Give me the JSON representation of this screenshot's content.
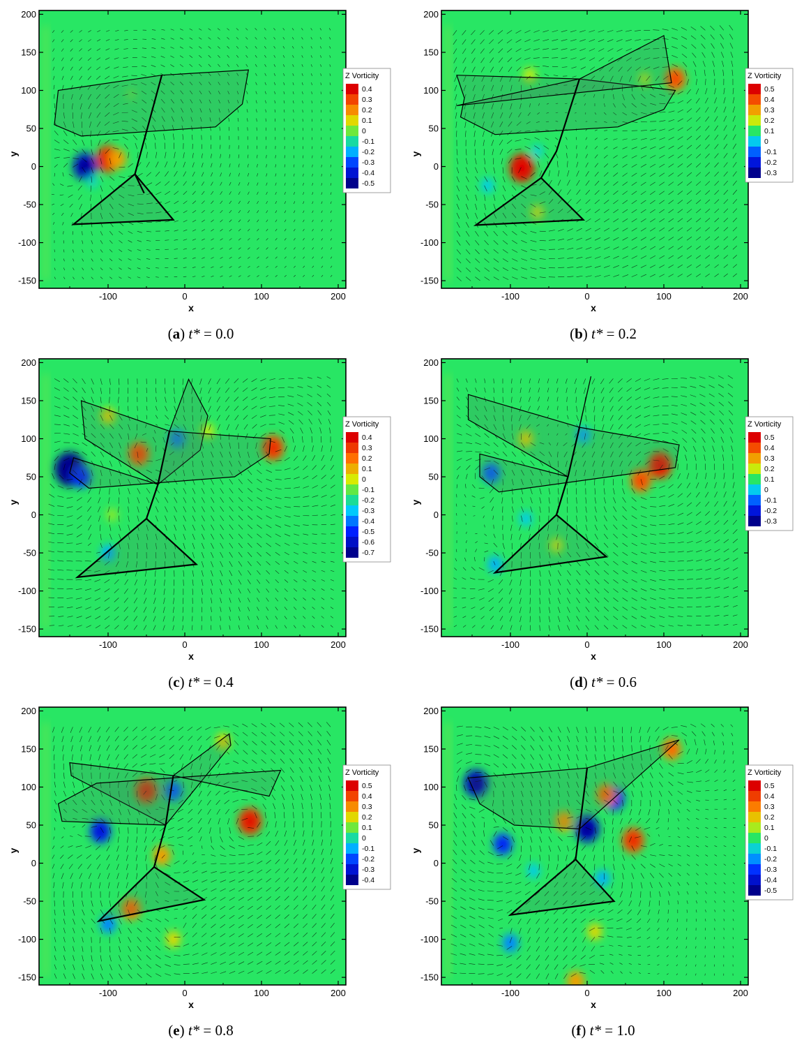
{
  "chart_data": [
    {
      "type": "heatmap",
      "caption": {
        "letter": "a",
        "var": "t*",
        "value": "0.0"
      },
      "xlabel": "x",
      "ylabel": "y",
      "xlim": [
        -190,
        210
      ],
      "ylim": [
        -160,
        205
      ],
      "xticks": [
        -100,
        0,
        100,
        200
      ],
      "yticks": [
        -150,
        -100,
        -50,
        0,
        50,
        100,
        150,
        200
      ],
      "legend": {
        "title": "Z Vorticity",
        "levels": [
          "0.4",
          "0.3",
          "0.2",
          "0.1",
          "0",
          "-0.1",
          "-0.2",
          "-0.3",
          "-0.4",
          "-0.5"
        ]
      },
      "vortices": [
        {
          "x": -100,
          "y": 10,
          "w": 0.5
        },
        {
          "x": -88,
          "y": 10,
          "w": 0.3
        },
        {
          "x": -130,
          "y": 0,
          "w": -0.5
        },
        {
          "x": -70,
          "y": 95,
          "w": 0.05
        },
        {
          "x": -120,
          "y": -20,
          "w": -0.1
        }
      ],
      "body": {
        "lines": [
          [
            [
              -30,
              120
            ],
            [
              -65,
              -10
            ],
            [
              -53,
              -35
            ]
          ]
        ],
        "polygons": [
          [
            [
              -30,
              120
            ],
            [
              -165,
              100
            ],
            [
              -170,
              55
            ],
            [
              -135,
              40
            ],
            [
              40,
              52
            ],
            [
              75,
              82
            ],
            [
              83,
              127
            ]
          ],
          [
            [
              -65,
              -10
            ],
            [
              -145,
              -76
            ],
            [
              -15,
              -70
            ]
          ]
        ]
      }
    },
    {
      "type": "heatmap",
      "caption": {
        "letter": "b",
        "var": "t*",
        "value": "0.2"
      },
      "xlabel": "x",
      "ylabel": "y",
      "xlim": [
        -190,
        210
      ],
      "ylim": [
        -160,
        205
      ],
      "xticks": [
        -100,
        0,
        100,
        200
      ],
      "yticks": [
        -150,
        -100,
        -50,
        0,
        50,
        100,
        150,
        200
      ],
      "legend": {
        "title": "Z Vorticity",
        "levels": [
          "0.5",
          "0.4",
          "0.3",
          "0.2",
          "0.1",
          "0",
          "-0.1",
          "-0.2",
          "-0.3"
        ]
      },
      "vortices": [
        {
          "x": -85,
          "y": -2,
          "w": 0.55
        },
        {
          "x": 115,
          "y": 115,
          "w": 0.4
        },
        {
          "x": -130,
          "y": -25,
          "w": -0.15
        },
        {
          "x": -65,
          "y": 20,
          "w": -0.12
        },
        {
          "x": -75,
          "y": 120,
          "w": 0.15
        },
        {
          "x": 75,
          "y": 115,
          "w": 0.12
        },
        {
          "x": -65,
          "y": -60,
          "w": 0.15
        }
      ],
      "body": {
        "lines": [
          [
            [
              -10,
              115
            ],
            [
              -40,
              20
            ],
            [
              -60,
              -15
            ]
          ]
        ],
        "polygons": [
          [
            [
              -10,
              115
            ],
            [
              -170,
              120
            ],
            [
              -160,
              90
            ],
            [
              -165,
              65
            ],
            [
              -120,
              42
            ],
            [
              40,
              52
            ],
            [
              100,
              75
            ],
            [
              115,
              100
            ]
          ],
          [
            [
              -10,
              115
            ],
            [
              -170,
              80
            ],
            [
              110,
              110
            ],
            [
              100,
              172
            ]
          ],
          [
            [
              -60,
              -15
            ],
            [
              -145,
              -77
            ],
            [
              -5,
              -70
            ]
          ]
        ]
      }
    },
    {
      "type": "heatmap",
      "caption": {
        "letter": "c",
        "var": "t*",
        "value": "0.4"
      },
      "xlabel": "x",
      "ylabel": "y",
      "xlim": [
        -190,
        210
      ],
      "ylim": [
        -160,
        205
      ],
      "xticks": [
        -100,
        0,
        100,
        200
      ],
      "yticks": [
        -150,
        -100,
        -50,
        0,
        50,
        100,
        150,
        200
      ],
      "legend": {
        "title": "Z Vorticity",
        "levels": [
          "0.4",
          "0.3",
          "0.2",
          "0.1",
          "0",
          "-0.1",
          "-0.2",
          "-0.3",
          "-0.4",
          "-0.5",
          "-0.6",
          "-0.7"
        ]
      },
      "vortices": [
        {
          "x": -150,
          "y": 60,
          "w": -0.7
        },
        {
          "x": -135,
          "y": 50,
          "w": -0.35
        },
        {
          "x": -60,
          "y": 80,
          "w": 0.4
        },
        {
          "x": 115,
          "y": 88,
          "w": 0.45
        },
        {
          "x": -10,
          "y": 100,
          "w": -0.25
        },
        {
          "x": 30,
          "y": 110,
          "w": 0.15
        },
        {
          "x": -100,
          "y": 130,
          "w": 0.2
        },
        {
          "x": -100,
          "y": -50,
          "w": -0.2
        },
        {
          "x": -95,
          "y": 0,
          "w": 0.1
        }
      ],
      "body": {
        "lines": [
          [
            [
              -20,
              110
            ],
            [
              -35,
              40
            ],
            [
              -50,
              -5
            ]
          ]
        ],
        "polygons": [
          [
            [
              -20,
              110
            ],
            [
              -135,
              150
            ],
            [
              -130,
              100
            ],
            [
              -35,
              40
            ]
          ],
          [
            [
              -20,
              110
            ],
            [
              5,
              178
            ],
            [
              30,
              130
            ],
            [
              20,
              85
            ],
            [
              -35,
              40
            ]
          ],
          [
            [
              -35,
              40
            ],
            [
              -145,
              75
            ],
            [
              -150,
              55
            ],
            [
              -125,
              35
            ],
            [
              65,
              50
            ],
            [
              110,
              80
            ],
            [
              112,
              100
            ],
            [
              -20,
              110
            ]
          ],
          [
            [
              -50,
              -5
            ],
            [
              -140,
              -82
            ],
            [
              15,
              -65
            ]
          ]
        ]
      }
    },
    {
      "type": "heatmap",
      "caption": {
        "letter": "d",
        "var": "t*",
        "value": "0.6"
      },
      "xlabel": "x",
      "ylabel": "y",
      "xlim": [
        -190,
        210
      ],
      "ylim": [
        -160,
        205
      ],
      "xticks": [
        -100,
        0,
        100,
        200
      ],
      "yticks": [
        -150,
        -100,
        -50,
        0,
        50,
        100,
        150,
        200
      ],
      "legend": {
        "title": "Z Vorticity",
        "levels": [
          "0.5",
          "0.4",
          "0.3",
          "0.2",
          "0.1",
          "0",
          "-0.1",
          "-0.2",
          "-0.3"
        ]
      },
      "vortices": [
        {
          "x": -125,
          "y": 55,
          "w": -0.3
        },
        {
          "x": 95,
          "y": 65,
          "w": 0.5
        },
        {
          "x": 70,
          "y": 45,
          "w": 0.4
        },
        {
          "x": -80,
          "y": 100,
          "w": 0.2
        },
        {
          "x": -5,
          "y": 105,
          "w": -0.2
        },
        {
          "x": -120,
          "y": -65,
          "w": -0.2
        },
        {
          "x": -80,
          "y": -5,
          "w": -0.15
        },
        {
          "x": -40,
          "y": -40,
          "w": 0.15
        }
      ],
      "body": {
        "lines": [
          [
            [
              -10,
              115
            ],
            [
              -25,
              50
            ],
            [
              -40,
              0
            ]
          ]
        ],
        "polygons": [
          [
            [
              -10,
              115
            ],
            [
              -155,
              158
            ],
            [
              -155,
              125
            ],
            [
              -25,
              50
            ]
          ],
          [
            [
              -10,
              115
            ],
            [
              5,
              182
            ],
            [
              -25,
              50
            ]
          ],
          [
            [
              -25,
              50
            ],
            [
              -140,
              80
            ],
            [
              -140,
              50
            ],
            [
              -115,
              30
            ],
            [
              115,
              62
            ],
            [
              120,
              92
            ],
            [
              -10,
              115
            ]
          ],
          [
            [
              -40,
              0
            ],
            [
              -120,
              -76
            ],
            [
              25,
              -55
            ]
          ]
        ]
      }
    },
    {
      "type": "heatmap",
      "caption": {
        "letter": "e",
        "var": "t*",
        "value": "0.8"
      },
      "xlabel": "x",
      "ylabel": "y",
      "xlim": [
        -190,
        210
      ],
      "ylim": [
        -160,
        205
      ],
      "xticks": [
        -100,
        0,
        100,
        200
      ],
      "yticks": [
        -150,
        -100,
        -50,
        0,
        50,
        100,
        150,
        200
      ],
      "legend": {
        "title": "Z Vorticity",
        "levels": [
          "0.5",
          "0.4",
          "0.3",
          "0.2",
          "0.1",
          "0",
          "-0.1",
          "-0.2",
          "-0.3",
          "-0.4"
        ]
      },
      "vortices": [
        {
          "x": -110,
          "y": 42,
          "w": -0.4
        },
        {
          "x": 85,
          "y": 55,
          "w": 0.5
        },
        {
          "x": -50,
          "y": 95,
          "w": 0.45
        },
        {
          "x": -15,
          "y": 95,
          "w": -0.3
        },
        {
          "x": -30,
          "y": 10,
          "w": 0.3
        },
        {
          "x": -70,
          "y": -60,
          "w": 0.35
        },
        {
          "x": -100,
          "y": -80,
          "w": -0.25
        },
        {
          "x": 50,
          "y": 160,
          "w": 0.2
        },
        {
          "x": -15,
          "y": -100,
          "w": 0.2
        }
      ],
      "body": {
        "lines": [
          [
            [
              -15,
              115
            ],
            [
              -25,
              50
            ],
            [
              -40,
              -5
            ]
          ]
        ],
        "polygons": [
          [
            [
              -15,
              115
            ],
            [
              -150,
              132
            ],
            [
              -148,
              115
            ],
            [
              -25,
              50
            ]
          ],
          [
            [
              -15,
              115
            ],
            [
              58,
              170
            ],
            [
              60,
              155
            ],
            [
              -25,
              50
            ]
          ],
          [
            [
              -25,
              50
            ],
            [
              -160,
              55
            ],
            [
              -165,
              78
            ],
            [
              -115,
              105
            ],
            [
              125,
              122
            ],
            [
              110,
              88
            ],
            [
              -15,
              115
            ]
          ],
          [
            [
              -40,
              -5
            ],
            [
              -112,
              -76
            ],
            [
              25,
              -48
            ]
          ]
        ]
      }
    },
    {
      "type": "heatmap",
      "caption": {
        "letter": "f",
        "var": "t*",
        "value": "1.0"
      },
      "xlabel": "x",
      "ylabel": "y",
      "xlim": [
        -190,
        210
      ],
      "ylim": [
        -160,
        205
      ],
      "xticks": [
        -100,
        0,
        100,
        200
      ],
      "yticks": [
        -150,
        -100,
        -50,
        0,
        50,
        100,
        150,
        200
      ],
      "legend": {
        "title": "Z Vorticity",
        "levels": [
          "0.5",
          "0.4",
          "0.3",
          "0.2",
          "0.1",
          "0",
          "-0.1",
          "-0.2",
          "-0.3",
          "-0.4",
          "-0.5"
        ]
      },
      "vortices": [
        {
          "x": -145,
          "y": 105,
          "w": -0.5
        },
        {
          "x": -110,
          "y": 25,
          "w": -0.35
        },
        {
          "x": 0,
          "y": 45,
          "w": -0.5
        },
        {
          "x": 35,
          "y": 85,
          "w": -0.4
        },
        {
          "x": 60,
          "y": 30,
          "w": 0.45
        },
        {
          "x": 25,
          "y": 90,
          "w": 0.35
        },
        {
          "x": -30,
          "y": 55,
          "w": 0.3
        },
        {
          "x": 110,
          "y": 150,
          "w": 0.35
        },
        {
          "x": -100,
          "y": -105,
          "w": -0.25
        },
        {
          "x": -70,
          "y": -10,
          "w": -0.15
        },
        {
          "x": 20,
          "y": -20,
          "w": -0.2
        },
        {
          "x": 10,
          "y": -90,
          "w": 0.2
        },
        {
          "x": -15,
          "y": -155,
          "w": 0.3
        }
      ],
      "body": {
        "lines": [
          [
            [
              0,
              125
            ],
            [
              -15,
              5
            ]
          ]
        ],
        "polygons": [
          [
            [
              0,
              125
            ],
            [
              -155,
              112
            ],
            [
              -140,
              78
            ],
            [
              -95,
              50
            ],
            [
              -10,
              45
            ],
            [
              120,
              162
            ]
          ],
          [
            [
              -15,
              5
            ],
            [
              -100,
              -68
            ],
            [
              35,
              -50
            ]
          ]
        ]
      }
    }
  ]
}
